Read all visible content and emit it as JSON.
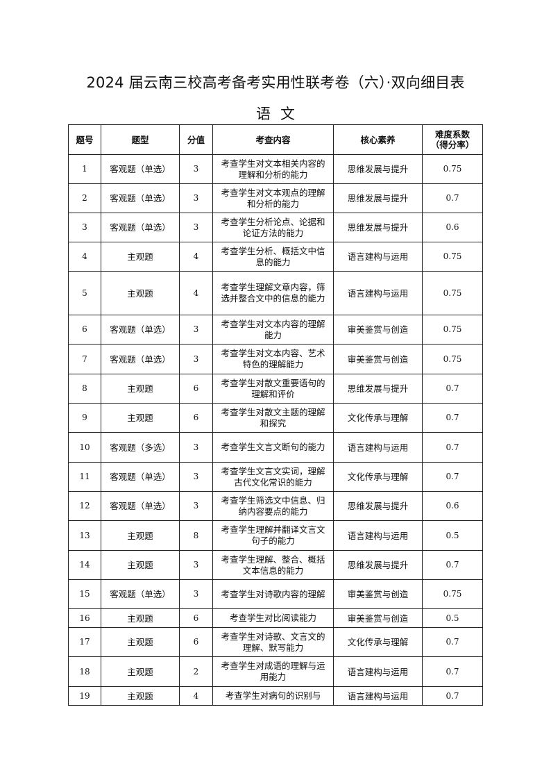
{
  "title": "2024 届云南三校高考备考实用性联考卷（六）·双向细目表",
  "subject": "语文",
  "table": {
    "headers": [
      "题号",
      "题型",
      "分值",
      "考查内容",
      "核心素养",
      "难度系数（得分率）"
    ],
    "rows": [
      {
        "no": "1",
        "type": "客观题（单选）",
        "score": "3",
        "content": "考查学生对文本相关内容的理解和分析的能力",
        "literacy": "思维发展与提升",
        "difficulty": "0.75"
      },
      {
        "no": "2",
        "type": "客观题（单选）",
        "score": "3",
        "content": "考查学生对文本观点的理解和分析的能力",
        "literacy": "思维发展与提升",
        "difficulty": "0.7"
      },
      {
        "no": "3",
        "type": "客观题（单选）",
        "score": "3",
        "content": "考查学生分析论点、论据和论证方法的能力",
        "literacy": "思维发展与提升",
        "difficulty": "0.6"
      },
      {
        "no": "4",
        "type": "主观题",
        "score": "4",
        "content": "考查学生分析、概括文中信息的能力",
        "literacy": "语言建构与运用",
        "difficulty": "0.75"
      },
      {
        "no": "5",
        "type": "主观题",
        "score": "4",
        "content": "考查学生理解文章内容，筛选并整合文中的信息的能力",
        "literacy": "语言建构与运用",
        "difficulty": "0.75"
      },
      {
        "no": "6",
        "type": "客观题（单选）",
        "score": "3",
        "content": "考查学生对文本内容的理解能力",
        "literacy": "审美鉴赏与创造",
        "difficulty": "0.75"
      },
      {
        "no": "7",
        "type": "客观题（单选）",
        "score": "3",
        "content": "考查学生对文本内容、艺术特色的理解能力",
        "literacy": "审美鉴赏与创造",
        "difficulty": "0.75"
      },
      {
        "no": "8",
        "type": "主观题",
        "score": "6",
        "content": "考查学生对散文重要语句的理解和评价",
        "literacy": "思维发展与提升",
        "difficulty": "0.7"
      },
      {
        "no": "9",
        "type": "主观题",
        "score": "6",
        "content": "考查学生对散文主题的理解和探究",
        "literacy": "文化传承与理解",
        "difficulty": "0.7"
      },
      {
        "no": "10",
        "type": "客观题（多选）",
        "score": "3",
        "content": "考查学生文言文断句的能力",
        "literacy": "语言建构与运用",
        "difficulty": "0.7"
      },
      {
        "no": "11",
        "type": "客观题（单选）",
        "score": "3",
        "content": "考查学生文言文实词，理解古代文化常识的能力",
        "literacy": "文化传承与理解",
        "difficulty": "0.7"
      },
      {
        "no": "12",
        "type": "客观题（单选）",
        "score": "3",
        "content": "考查学生筛选文中信息、归纳内容要点的能力",
        "literacy": "思维发展与提升",
        "difficulty": "0.6"
      },
      {
        "no": "13",
        "type": "主观题",
        "score": "8",
        "content": "考查学生理解并翻译文言文句子的能力",
        "literacy": "语言建构与运用",
        "difficulty": "0.5"
      },
      {
        "no": "14",
        "type": "主观题",
        "score": "3",
        "content": "考查学生理解、整合、概括文本信息的能力",
        "literacy": "思维发展与提升",
        "difficulty": "0.7"
      },
      {
        "no": "15",
        "type": "客观题（单选）",
        "score": "3",
        "content": "考查学生对诗歌内容的理解",
        "literacy": "审美鉴赏与创造",
        "difficulty": "0.75"
      },
      {
        "no": "16",
        "type": "主观题",
        "score": "6",
        "content": "考查学生对比阅读能力",
        "literacy": "审美鉴赏与创造",
        "difficulty": "0.5"
      },
      {
        "no": "17",
        "type": "主观题",
        "score": "6",
        "content": "考查学生对诗歌、文言文的理解、默写能力",
        "literacy": "文化传承与理解",
        "difficulty": "0.7"
      },
      {
        "no": "18",
        "type": "主观题",
        "score": "2",
        "content": "考查学生对成语的理解与运用能力",
        "literacy": "语言建构与运用",
        "difficulty": "0.7"
      },
      {
        "no": "19",
        "type": "主观题",
        "score": "4",
        "content": "考查学生对病句的识别与",
        "literacy": "语言建构与运用",
        "difficulty": "0.7"
      }
    ]
  }
}
